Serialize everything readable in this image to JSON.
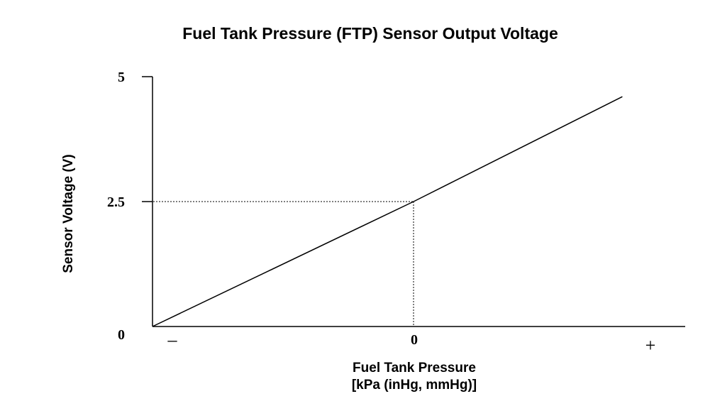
{
  "chart_data": {
    "type": "line",
    "title": "Fuel Tank Pressure (FTP) Sensor Output Voltage",
    "xlabel": "Fuel Tank Pressure",
    "xlabel_units": "[kPa (inHg, mmHg)]",
    "ylabel": "Sensor Voltage (V)",
    "x_ticks": [
      "–",
      "0",
      "+"
    ],
    "y_ticks": [
      "0",
      "2.5",
      "5"
    ],
    "ylim": [
      0,
      5
    ],
    "xlim": [
      -1,
      1
    ],
    "grid": false,
    "series": [
      {
        "x": [
          -1,
          0,
          0.8
        ],
        "y": [
          0,
          2.5,
          4.6
        ]
      }
    ],
    "reference_point": {
      "x": 0,
      "y": 2.5
    }
  }
}
